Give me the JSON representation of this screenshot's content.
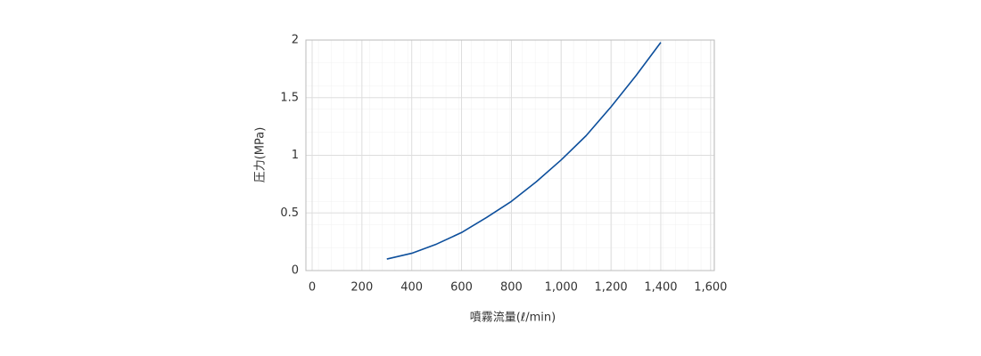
{
  "chart_data": {
    "type": "line",
    "x_label": "噴霧流量(ℓ/min)",
    "y_label": "圧力(MPa)",
    "x": [
      300,
      400,
      500,
      600,
      700,
      800,
      900,
      1000,
      1100,
      1200,
      1300,
      1400
    ],
    "series": [
      {
        "color": "#0d4f9c",
        "values": [
          0.1,
          0.15,
          0.23,
          0.33,
          0.46,
          0.6,
          0.77,
          0.96,
          1.17,
          1.42,
          1.69,
          1.98
        ]
      }
    ],
    "xlim": [
      -25,
      1615
    ],
    "ylim": [
      0,
      2
    ],
    "xticks": [
      0,
      200,
      400,
      600,
      800,
      {
        "value": 1000,
        "label": "1,000"
      },
      {
        "value": 1200,
        "label": "1,200"
      },
      {
        "value": 1400,
        "label": "1,400"
      },
      {
        "value": 1600,
        "label": "1,600"
      }
    ],
    "yticks": [
      0,
      0.5,
      1,
      1.5,
      2
    ],
    "grid": true
  }
}
